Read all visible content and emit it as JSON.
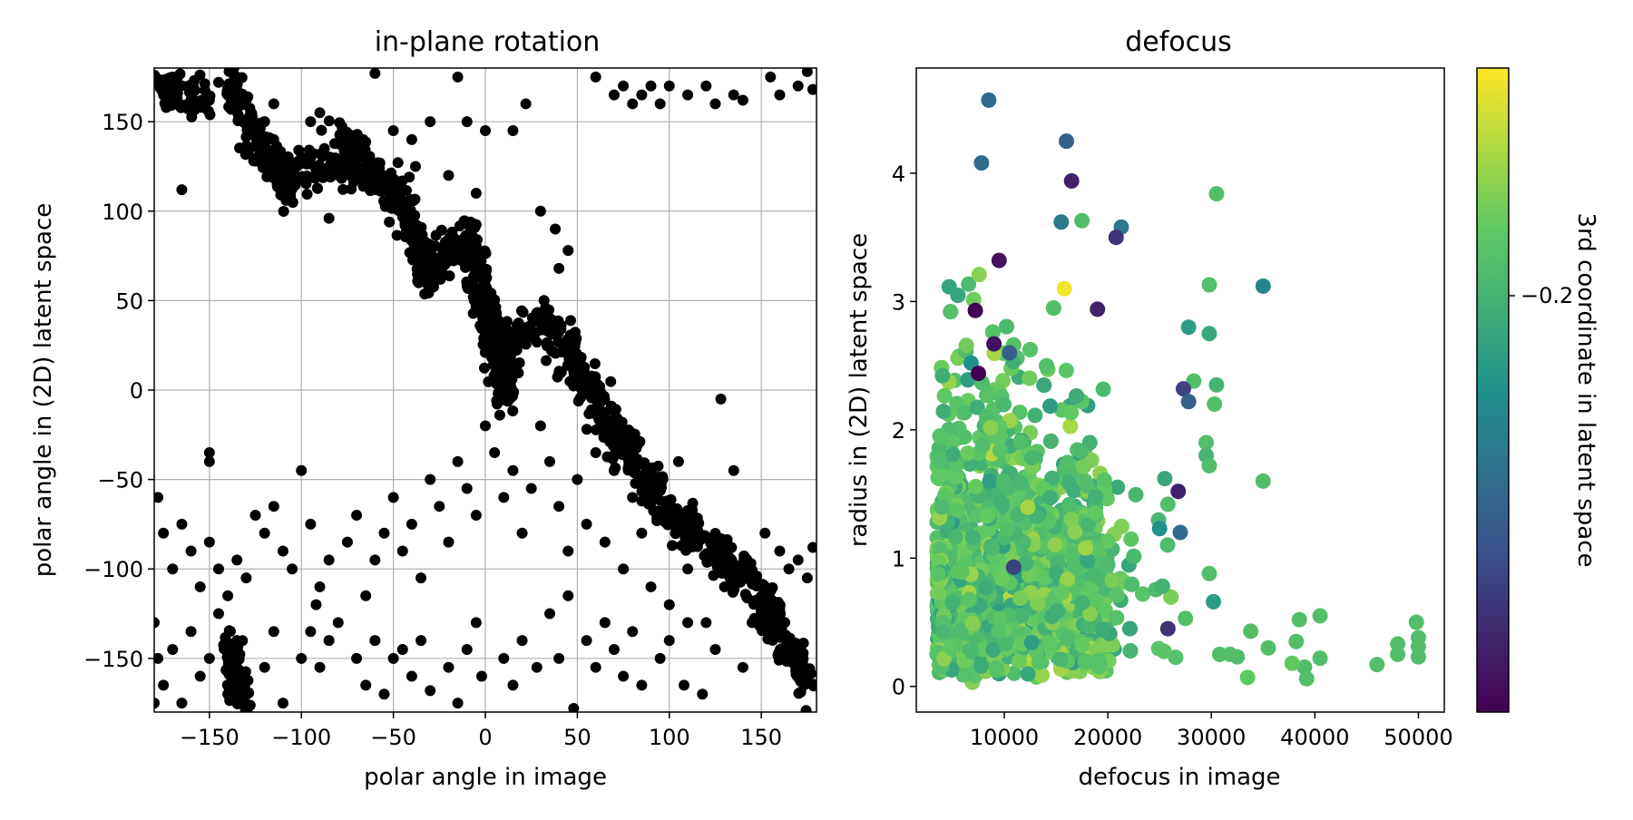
{
  "chart_data": [
    {
      "type": "scatter",
      "title": "in-plane rotation",
      "xlabel": "polar angle in image",
      "ylabel": "polar angle in (2D) latent space",
      "xlim": [
        -180,
        180
      ],
      "ylim": [
        -180,
        180
      ],
      "xticks": [
        -150,
        -100,
        -50,
        0,
        50,
        100,
        150
      ],
      "yticks": [
        -150,
        -100,
        -50,
        0,
        50,
        100,
        150
      ],
      "xtick_labels": [
        "−150",
        "−100",
        "−50",
        "0",
        "50",
        "100",
        "150"
      ],
      "ytick_labels": [
        "−150",
        "−100",
        "−50",
        "0",
        "50",
        "100",
        "150"
      ],
      "grid": true,
      "marker_color": "#000000",
      "dense_bands": [
        {
          "from": [
            -140,
            175
          ],
          "to": [
            -130,
            155
          ]
        },
        {
          "from": [
            -130,
            150
          ],
          "to": [
            -105,
            110
          ]
        },
        {
          "from": [
            -105,
            120
          ],
          "to": [
            -70,
            125
          ]
        },
        {
          "from": [
            -80,
            145
          ],
          "to": [
            -40,
            95
          ]
        },
        {
          "from": [
            -40,
            90
          ],
          "to": [
            -30,
            60
          ]
        },
        {
          "from": [
            -35,
            70
          ],
          "to": [
            -10,
            85
          ]
        },
        {
          "from": [
            -10,
            90
          ],
          "to": [
            0,
            50
          ]
        },
        {
          "from": [
            0,
            50
          ],
          "to": [
            10,
            -5
          ]
        },
        {
          "from": [
            10,
            0
          ],
          "to": [
            15,
            30
          ]
        },
        {
          "from": [
            15,
            30
          ],
          "to": [
            35,
            40
          ]
        },
        {
          "from": [
            35,
            40
          ],
          "to": [
            70,
            -25
          ]
        },
        {
          "from": [
            70,
            -25
          ],
          "to": [
            100,
            -70
          ]
        },
        {
          "from": [
            100,
            -70
          ],
          "to": [
            130,
            -95
          ]
        },
        {
          "from": [
            130,
            -95
          ],
          "to": [
            155,
            -120
          ]
        },
        {
          "from": [
            150,
            -115
          ],
          "to": [
            175,
            -165
          ]
        },
        {
          "from": [
            -180,
            170
          ],
          "to": [
            -150,
            165
          ]
        },
        {
          "from": [
            -140,
            -140
          ],
          "to": [
            -130,
            -180
          ]
        }
      ],
      "points": [
        [
          -178,
          172
        ],
        [
          -175,
          165
        ],
        [
          -170,
          175
        ],
        [
          -168,
          160
        ],
        [
          -165,
          112
        ],
        [
          -160,
          168
        ],
        [
          -155,
          158
        ],
        [
          -150,
          162
        ],
        [
          -145,
          172
        ],
        [
          -140,
          165
        ],
        [
          -120,
          150
        ],
        [
          -115,
          160
        ],
        [
          -100,
          130
        ],
        [
          -95,
          150
        ],
        [
          -90,
          155
        ],
        [
          -85,
          96
        ],
        [
          -60,
          177
        ],
        [
          -50,
          145
        ],
        [
          -40,
          140
        ],
        [
          -38,
          125
        ],
        [
          -30,
          150
        ],
        [
          -20,
          120
        ],
        [
          -15,
          175
        ],
        [
          -10,
          150
        ],
        [
          -5,
          110
        ],
        [
          0,
          145
        ],
        [
          15,
          145
        ],
        [
          22,
          160
        ],
        [
          30,
          100
        ],
        [
          38,
          90
        ],
        [
          40,
          68
        ],
        [
          45,
          78
        ],
        [
          60,
          175
        ],
        [
          70,
          165
        ],
        [
          75,
          170
        ],
        [
          80,
          160
        ],
        [
          85,
          165
        ],
        [
          90,
          170
        ],
        [
          95,
          160
        ],
        [
          100,
          170
        ],
        [
          110,
          165
        ],
        [
          120,
          170
        ],
        [
          125,
          160
        ],
        [
          135,
          165
        ],
        [
          140,
          162
        ],
        [
          155,
          175
        ],
        [
          160,
          165
        ],
        [
          170,
          170
        ],
        [
          175,
          178
        ],
        [
          178,
          168
        ],
        [
          128,
          -5
        ],
        [
          135,
          -45
        ],
        [
          152,
          -80
        ],
        [
          160,
          -90
        ],
        [
          165,
          -100
        ],
        [
          170,
          -95
        ],
        [
          175,
          -105
        ],
        [
          178,
          -88
        ],
        [
          -178,
          -60
        ],
        [
          -175,
          -80
        ],
        [
          -170,
          -100
        ],
        [
          -165,
          -75
        ],
        [
          -160,
          -90
        ],
        [
          -155,
          -110
        ],
        [
          -150,
          -85
        ],
        [
          -145,
          -100
        ],
        [
          -140,
          -115
        ],
        [
          -135,
          -95
        ],
        [
          -130,
          -105
        ],
        [
          -125,
          -70
        ],
        [
          -120,
          -80
        ],
        [
          -115,
          -65
        ],
        [
          -110,
          -90
        ],
        [
          -105,
          -100
        ],
        [
          -100,
          -45
        ],
        [
          -95,
          -75
        ],
        [
          -90,
          -110
        ],
        [
          -85,
          -95
        ],
        [
          -80,
          -130
        ],
        [
          -75,
          -85
        ],
        [
          -70,
          -70
        ],
        [
          -65,
          -115
        ],
        [
          -60,
          -95
        ],
        [
          -55,
          -80
        ],
        [
          -50,
          -60
        ],
        [
          -45,
          -90
        ],
        [
          -40,
          -75
        ],
        [
          -35,
          -105
        ],
        [
          -30,
          -50
        ],
        [
          -25,
          -65
        ],
        [
          -20,
          -85
        ],
        [
          -15,
          -40
        ],
        [
          -10,
          -55
        ],
        [
          -5,
          -70
        ],
        [
          0,
          -20
        ],
        [
          5,
          -35
        ],
        [
          10,
          -60
        ],
        [
          15,
          -45
        ],
        [
          20,
          -80
        ],
        [
          25,
          -55
        ],
        [
          30,
          -20
        ],
        [
          35,
          -40
        ],
        [
          40,
          -65
        ],
        [
          45,
          -90
        ],
        [
          50,
          -50
        ],
        [
          55,
          -75
        ],
        [
          60,
          -35
        ],
        [
          65,
          -85
        ],
        [
          70,
          -45
        ],
        [
          75,
          -100
        ],
        [
          80,
          -60
        ],
        [
          85,
          -80
        ],
        [
          90,
          -110
        ],
        [
          95,
          -55
        ],
        [
          100,
          -120
        ],
        [
          105,
          -40
        ],
        [
          110,
          -100
        ],
        [
          115,
          -75
        ],
        [
          120,
          -130
        ],
        [
          125,
          -90
        ],
        [
          130,
          -110
        ],
        [
          -180,
          -130
        ],
        [
          -178,
          -150
        ],
        [
          -175,
          -165
        ],
        [
          -170,
          -145
        ],
        [
          -165,
          -175
        ],
        [
          -160,
          -135
        ],
        [
          -155,
          -160
        ],
        [
          -150,
          -150
        ],
        [
          -145,
          -125
        ],
        [
          -140,
          -170
        ],
        [
          -135,
          -140
        ],
        [
          -120,
          -155
        ],
        [
          -115,
          -135
        ],
        [
          -110,
          -175
        ],
        [
          -100,
          -150
        ],
        [
          -95,
          -135
        ],
        [
          -90,
          -155
        ],
        [
          -85,
          -140
        ],
        [
          -70,
          -150
        ],
        [
          -65,
          -165
        ],
        [
          -60,
          -140
        ],
        [
          -55,
          -170
        ],
        [
          -50,
          -150
        ],
        [
          -45,
          -145
        ],
        [
          -40,
          -160
        ],
        [
          -35,
          -140
        ],
        [
          -20,
          -155
        ],
        [
          -15,
          -175
        ],
        [
          -10,
          -145
        ],
        [
          -5,
          -130
        ],
        [
          10,
          -150
        ],
        [
          15,
          -165
        ],
        [
          20,
          -140
        ],
        [
          28,
          -155
        ],
        [
          35,
          -125
        ],
        [
          40,
          -150
        ],
        [
          45,
          -115
        ],
        [
          55,
          -140
        ],
        [
          60,
          -155
        ],
        [
          65,
          -130
        ],
        [
          70,
          -145
        ],
        [
          75,
          -160
        ],
        [
          80,
          -135
        ],
        [
          85,
          -165
        ],
        [
          95,
          -150
        ],
        [
          100,
          -140
        ],
        [
          108,
          -165
        ],
        [
          110,
          -130
        ],
        [
          118,
          -170
        ],
        [
          125,
          -145
        ],
        [
          140,
          -155
        ],
        [
          145,
          -130
        ],
        [
          -2,
          -160
        ],
        [
          48,
          -178
        ],
        [
          -30,
          -168
        ],
        [
          -92,
          -120
        ],
        [
          -150,
          -40
        ],
        [
          -150,
          -35
        ],
        [
          -180,
          -175
        ]
      ]
    },
    {
      "type": "scatter",
      "title": "defocus",
      "xlabel": "defocus in image",
      "ylabel": "radius in (2D) latent space",
      "xlim": [
        1500,
        52500
      ],
      "ylim": [
        -0.2,
        4.82
      ],
      "xticks": [
        10000,
        20000,
        30000,
        40000,
        50000
      ],
      "yticks": [
        0,
        1,
        2,
        3,
        4
      ],
      "xtick_labels": [
        "10000",
        "20000",
        "30000",
        "40000",
        "50000"
      ],
      "ytick_labels": [
        "0",
        "1",
        "2",
        "3",
        "4"
      ],
      "grid": false,
      "colorbar": {
        "label": "3rd coordinate in latent space",
        "tick_label": "−0.2",
        "colormap": "viridis",
        "colors": [
          "#440154",
          "#3b528b",
          "#21918c",
          "#5ec962",
          "#fde725"
        ]
      },
      "points": [
        [
          8500,
          4.57,
          0.35
        ],
        [
          16000,
          4.25,
          0.3
        ],
        [
          7800,
          4.08,
          0.35
        ],
        [
          16500,
          3.94,
          0.1
        ],
        [
          30500,
          3.84,
          0.7
        ],
        [
          17500,
          3.63,
          0.7
        ],
        [
          21300,
          3.58,
          0.4
        ],
        [
          15500,
          3.62,
          0.4
        ],
        [
          20800,
          3.5,
          0.15
        ],
        [
          9500,
          3.32,
          0.05
        ],
        [
          35000,
          3.12,
          0.45
        ],
        [
          29800,
          3.13,
          0.7
        ],
        [
          15800,
          3.1,
          0.98
        ],
        [
          7200,
          2.93,
          0.0
        ],
        [
          19000,
          2.94,
          0.1
        ],
        [
          27800,
          2.8,
          0.55
        ],
        [
          29800,
          2.75,
          0.6
        ],
        [
          9000,
          2.67,
          0.05
        ],
        [
          10500,
          2.6,
          0.3
        ],
        [
          6800,
          2.52,
          0.5
        ],
        [
          7500,
          2.44,
          0.0
        ],
        [
          28300,
          2.38,
          0.7
        ],
        [
          30500,
          2.35,
          0.65
        ],
        [
          27300,
          2.32,
          0.2
        ],
        [
          27800,
          2.22,
          0.3
        ],
        [
          30300,
          2.2,
          0.7
        ],
        [
          29500,
          1.9,
          0.7
        ],
        [
          29500,
          1.8,
          0.65
        ],
        [
          29800,
          1.72,
          0.7
        ],
        [
          35000,
          1.6,
          0.7
        ],
        [
          26800,
          1.52,
          0.1
        ],
        [
          25500,
          1.62,
          0.6
        ],
        [
          25800,
          1.42,
          0.7
        ],
        [
          25000,
          1.23,
          0.5
        ],
        [
          27000,
          1.2,
          0.35
        ],
        [
          10900,
          0.93,
          0.2
        ],
        [
          29800,
          0.88,
          0.7
        ],
        [
          30200,
          0.66,
          0.55
        ],
        [
          25800,
          0.45,
          0.15
        ],
        [
          27500,
          0.53,
          0.7
        ],
        [
          33800,
          0.43,
          0.7
        ],
        [
          35500,
          0.3,
          0.7
        ],
        [
          38500,
          0.52,
          0.7
        ],
        [
          40500,
          0.55,
          0.7
        ],
        [
          40500,
          0.22,
          0.7
        ],
        [
          38200,
          0.35,
          0.7
        ],
        [
          39000,
          0.15,
          0.7
        ],
        [
          37800,
          0.18,
          0.75
        ],
        [
          39200,
          0.06,
          0.7
        ],
        [
          46000,
          0.17,
          0.7
        ],
        [
          48000,
          0.33,
          0.7
        ],
        [
          48000,
          0.25,
          0.7
        ],
        [
          49800,
          0.5,
          0.7
        ],
        [
          50000,
          0.38,
          0.7
        ],
        [
          50000,
          0.31,
          0.7
        ],
        [
          50000,
          0.23,
          0.7
        ],
        [
          33500,
          0.07,
          0.75
        ],
        [
          31800,
          0.25,
          0.7
        ],
        [
          30800,
          0.25,
          0.7
        ],
        [
          32500,
          0.23,
          0.7
        ]
      ]
    }
  ]
}
